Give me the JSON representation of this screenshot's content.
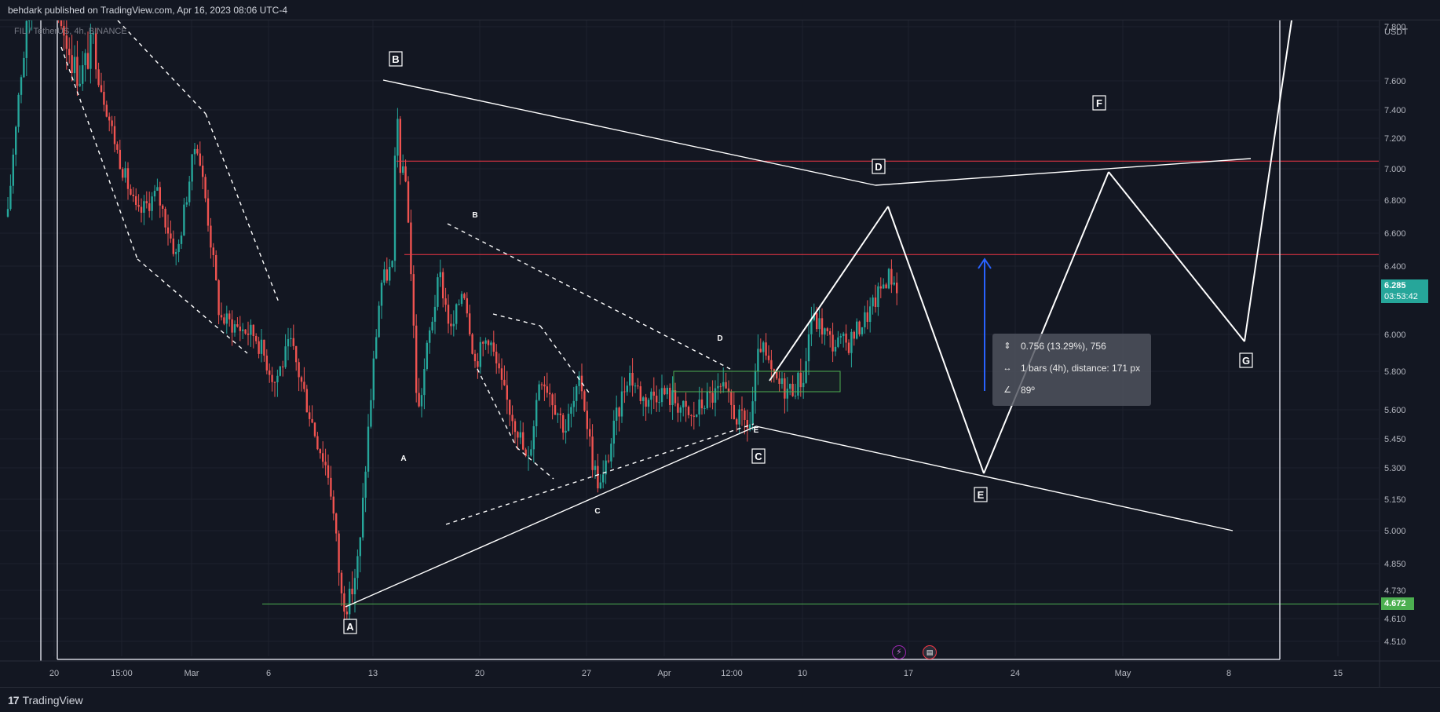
{
  "header": {
    "publisher": "behdark",
    "published_text": " published on TradingView.com, Apr 16, 2023 08:06 UTC-4"
  },
  "footer": {
    "brand": "TradingView",
    "logo": "17"
  },
  "symbol": {
    "label": "FIL / TetherUS, 4h, BINANCE"
  },
  "measure": {
    "line1": "0.756 (13.29%), 756",
    "line2": "1 bars (4h), distance: 171 px",
    "line3": "89º",
    "icons": [
      "price-range-icon",
      "bar-range-icon",
      "angle-icon"
    ]
  },
  "price_tags": {
    "current_price": "6.285",
    "countdown": "03:53:42",
    "support_price": "4.672"
  },
  "colors": {
    "background": "#131722",
    "up_candle": "#26a69a",
    "down_candle": "#ef5350",
    "current_tag": "#26a69a",
    "support_line": "#4caf50",
    "resistance_line": "#f23645",
    "arrow": "#2962ff",
    "drawing": "#ffffff"
  },
  "chart_data": {
    "type": "candlestick",
    "title": "FIL / TetherUS, 4h, BINANCE",
    "currency": "USDT",
    "y_axis_ticks": [
      7.8,
      7.6,
      7.4,
      7.2,
      7.0,
      6.8,
      6.6,
      6.4,
      6.0,
      5.8,
      5.6,
      5.45,
      5.3,
      5.15,
      5.0,
      4.85,
      4.73,
      4.61,
      4.51
    ],
    "y_axis_tick_labels": [
      "7.800",
      "7.600",
      "7.400",
      "7.200",
      "7.000",
      "6.800",
      "6.600",
      "6.400",
      "6.000",
      "5.800",
      "5.600",
      "5.450",
      "5.300",
      "5.150",
      "5.000",
      "4.850",
      "4.730",
      "4.610",
      "4.510"
    ],
    "x_axis_labels": [
      "20",
      "15:00",
      "Mar",
      "6",
      "13",
      "20",
      "27",
      "Apr",
      "12:00",
      "10",
      "17",
      "24",
      "May",
      "8",
      "15"
    ],
    "last_price": 6.285,
    "horizontal_lines": [
      {
        "price": 7.05,
        "color": "red"
      },
      {
        "price": 6.47,
        "color": "red"
      },
      {
        "price": 4.672,
        "color": "green"
      }
    ],
    "wave_labels_major": [
      "A",
      "B",
      "C",
      "D",
      "E",
      "F",
      "G"
    ],
    "wave_labels_minor": [
      "A",
      "B",
      "C",
      "D",
      "E"
    ]
  }
}
